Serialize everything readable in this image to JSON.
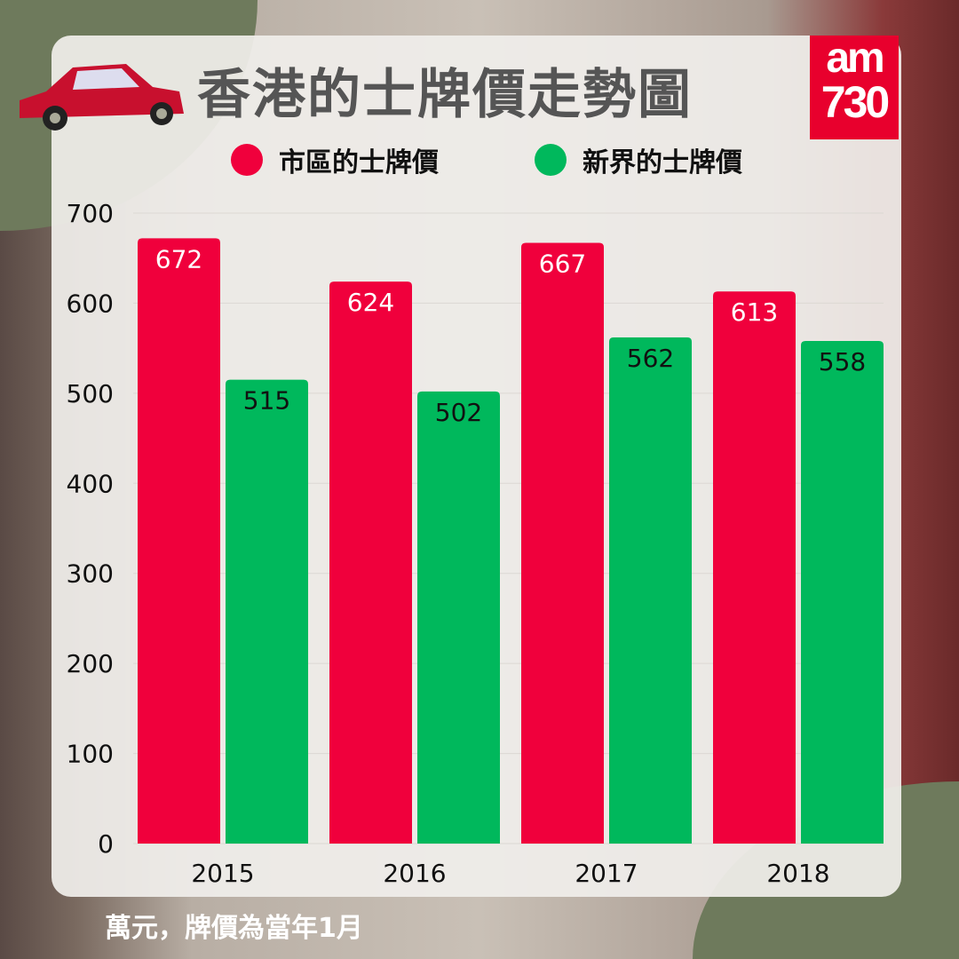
{
  "brand": {
    "logo_text_top": "am",
    "logo_text_bottom": "730",
    "logo_color": "#e8002d"
  },
  "footnote": "萬元，牌價為當年1月",
  "chart_data": {
    "type": "bar",
    "title": "香港的士牌價走勢圖",
    "categories": [
      "2015",
      "2016",
      "2017",
      "2018"
    ],
    "series": [
      {
        "name": "市區的士牌價",
        "color": "#f0003c",
        "values": [
          672,
          624,
          667,
          613
        ]
      },
      {
        "name": "新界的士牌價",
        "color": "#00b85c",
        "values": [
          515,
          502,
          562,
          558
        ]
      }
    ],
    "ylim": [
      0,
      700
    ],
    "yticks": [
      "0",
      "100",
      "200",
      "300",
      "400",
      "500",
      "600",
      "700"
    ],
    "grid": true,
    "legend": "top",
    "data_labels": true
  }
}
